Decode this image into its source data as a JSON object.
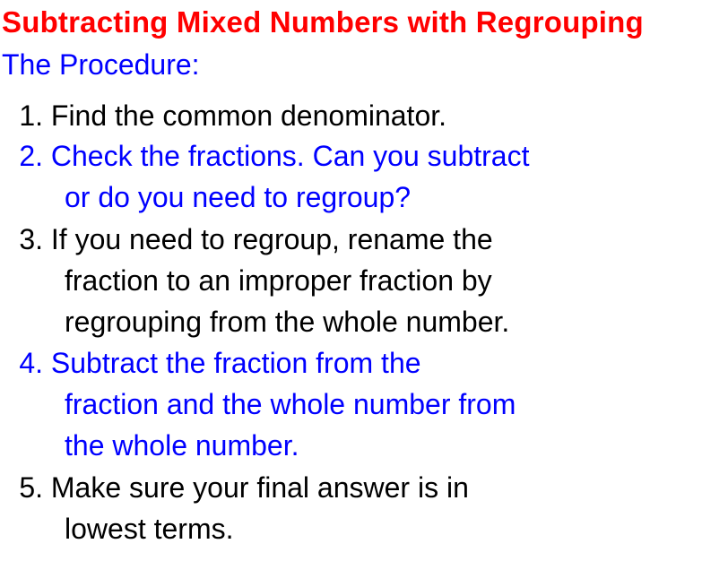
{
  "colors": {
    "red": "#ff0000",
    "blue": "#0000ff",
    "black": "#000000",
    "background": "#ffffff"
  },
  "typography": {
    "family": "Comic Sans MS",
    "title_fontsize": 33,
    "title_weight": "bold",
    "body_fontsize": 32,
    "line_height": 46
  },
  "title": {
    "text": "Subtracting Mixed Numbers with Regrouping",
    "color": "#ff0000"
  },
  "subtitle": {
    "text": "The Procedure:",
    "color": "#0000ff"
  },
  "steps": [
    {
      "num": "1.",
      "color": "#000000",
      "lines": [
        "Find the common denominator."
      ]
    },
    {
      "num": "2.",
      "color": "#0000ff",
      "lines": [
        "Check the fractions. Can you subtract",
        "or do you need to regroup?"
      ]
    },
    {
      "num": "3.",
      "color": "#000000",
      "lines": [
        "If you need to regroup, rename the",
        "fraction to an improper fraction by",
        "regrouping from the whole number."
      ]
    },
    {
      "num": "4.",
      "color": "#0000ff",
      "lines": [
        "Subtract the fraction from the",
        "fraction and the whole number from",
        "the whole number."
      ]
    },
    {
      "num": "5.",
      "color": "#000000",
      "lines": [
        "Make sure your final answer is in",
        "lowest terms."
      ]
    }
  ]
}
